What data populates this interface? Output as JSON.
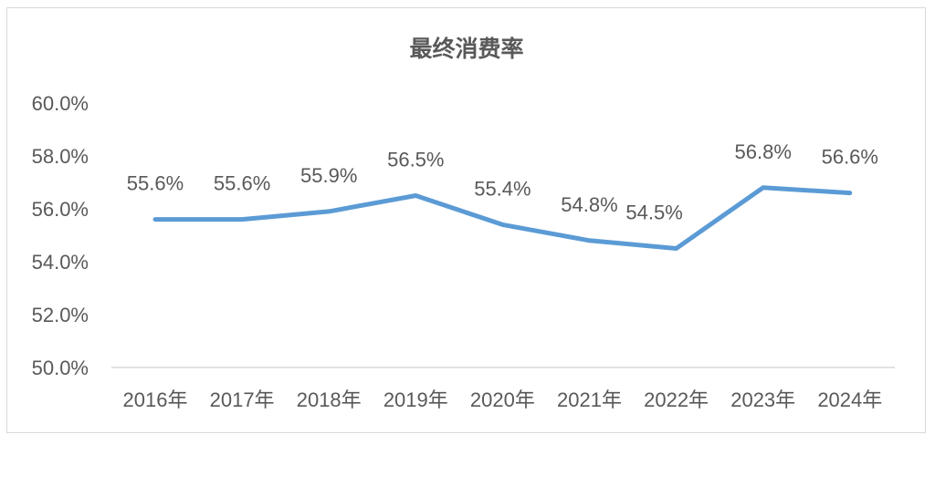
{
  "chart_data": {
    "type": "line",
    "title": "最终消费率",
    "xlabel": "",
    "ylabel": "",
    "categories": [
      "2016年",
      "2017年",
      "2018年",
      "2019年",
      "2020年",
      "2021年",
      "2022年",
      "2023年",
      "2024年"
    ],
    "series": [
      {
        "name": "最终消费率",
        "values": [
          55.6,
          55.6,
          55.9,
          56.5,
          55.4,
          54.8,
          54.5,
          56.8,
          56.6
        ],
        "color": "#5b9bd5"
      }
    ],
    "data_labels": [
      "55.6%",
      "55.6%",
      "55.9%",
      "56.5%",
      "55.4%",
      "54.8%",
      "54.5%",
      "56.8%",
      "56.6%"
    ],
    "ylim": [
      50,
      60
    ],
    "yticks": [
      50,
      52,
      54,
      56,
      58,
      60
    ],
    "ytick_labels": [
      "50.0%",
      "52.0%",
      "54.0%",
      "56.0%",
      "58.0%",
      "60.0%"
    ],
    "grid": false,
    "legend": "none"
  }
}
